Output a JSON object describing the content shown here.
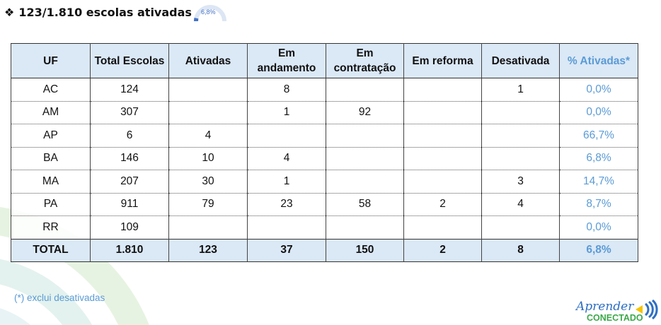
{
  "header": {
    "bullet_icon": "diamond-bullet-icon",
    "title": "123/1.810 escolas ativadas",
    "gauge_value": "6,8%",
    "gauge_fraction": 0.068,
    "accent": "#4472c4"
  },
  "table": {
    "columns": [
      "UF",
      "Total Escolas",
      "Ativadas",
      "Em andamento",
      "Em contratação",
      "Em reforma",
      "Desativada",
      "% Ativadas*"
    ],
    "columns_lines": [
      [
        "UF"
      ],
      [
        "Total Escolas"
      ],
      [
        "Ativadas"
      ],
      [
        "Em",
        "andamento"
      ],
      [
        "Em",
        "contratação"
      ],
      [
        "Em reforma"
      ],
      [
        "Desativada"
      ],
      [
        "% Ativadas*"
      ]
    ],
    "rows": [
      [
        "AC",
        "124",
        "",
        "8",
        "",
        "",
        "1",
        "0,0%"
      ],
      [
        "AM",
        "307",
        "",
        "1",
        "92",
        "",
        "",
        "0,0%"
      ],
      [
        "AP",
        "6",
        "4",
        "",
        "",
        "",
        "",
        "66,7%"
      ],
      [
        "BA",
        "146",
        "10",
        "4",
        "",
        "",
        "",
        "6,8%"
      ],
      [
        "MA",
        "207",
        "30",
        "1",
        "",
        "",
        "3",
        "14,7%"
      ],
      [
        "PA",
        "911",
        "79",
        "23",
        "58",
        "2",
        "4",
        "8,7%"
      ],
      [
        "RR",
        "109",
        "",
        "",
        "",
        "",
        "",
        "0,0%"
      ]
    ],
    "total": [
      "TOTAL",
      "1.810",
      "123",
      "37",
      "150",
      "2",
      "8",
      "6,8%"
    ],
    "header_bg": "#dbe8f6",
    "pct_color": "#5b9bd5"
  },
  "footnote": "(*) exclui desativadas",
  "logo": {
    "line1": "Aprender",
    "line2": "CONECTADO"
  }
}
